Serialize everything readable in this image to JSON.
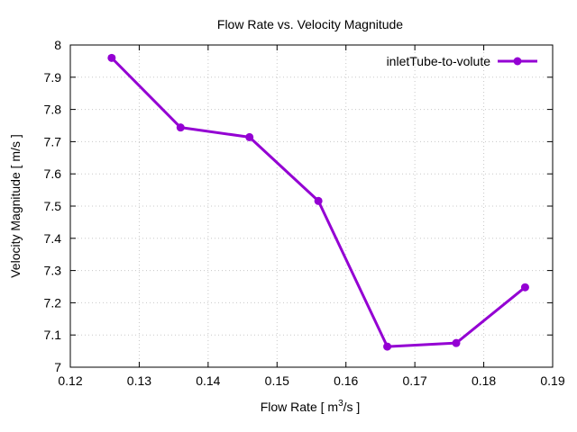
{
  "chart_data": {
    "type": "line",
    "title": "Flow Rate vs. Velocity Magnitude",
    "xlabel": {
      "prefix": "Flow Rate [ m",
      "sup": "3",
      "suffix": "/s ]"
    },
    "ylabel": "Velocity Magnitude [ m/s ]",
    "xlim": [
      0.12,
      0.19
    ],
    "ylim": [
      7.0,
      8.0
    ],
    "xticks": [
      0.12,
      0.13,
      0.14,
      0.15,
      0.16,
      0.17,
      0.18,
      0.19
    ],
    "xtick_labels": [
      "0.12",
      "0.13",
      "0.14",
      "0.15",
      "0.16",
      "0.17",
      "0.18",
      "0.19"
    ],
    "yticks": [
      7.0,
      7.1,
      7.2,
      7.3,
      7.4,
      7.5,
      7.6,
      7.7,
      7.8,
      7.9,
      8.0
    ],
    "ytick_labels": [
      "7",
      "7.1",
      "7.2",
      "7.3",
      "7.4",
      "7.5",
      "7.6",
      "7.7",
      "7.8",
      "7.9",
      "8"
    ],
    "grid": true,
    "legend_position": "top-right",
    "series": [
      {
        "name": "inletTube-to-volute",
        "color": "#9400d3",
        "x": [
          0.126,
          0.136,
          0.146,
          0.156,
          0.166,
          0.176,
          0.186
        ],
        "y": [
          7.96,
          7.744,
          7.714,
          7.516,
          7.064,
          7.075,
          7.248
        ]
      }
    ]
  }
}
